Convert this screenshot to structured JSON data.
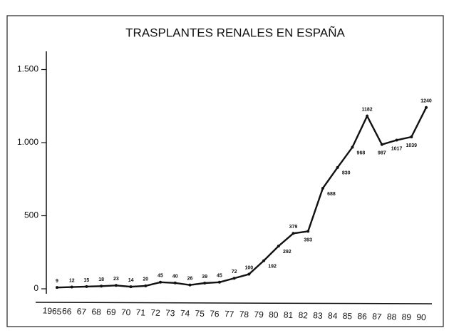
{
  "chart_data": {
    "type": "line",
    "title": "TRASPLANTES RENALES EN ESPAÑA",
    "categories": [
      "1965",
      "66",
      "67",
      "68",
      "69",
      "70",
      "71",
      "72",
      "73",
      "74",
      "75",
      "76",
      "77",
      "78",
      "79",
      "80",
      "81",
      "82",
      "83",
      "84",
      "85",
      "86",
      "87",
      "88",
      "89",
      "90"
    ],
    "series": [
      {
        "name": null,
        "color": "#111111",
        "values": [
          9,
          12,
          15,
          18,
          23,
          14,
          20,
          45,
          40,
          26,
          39,
          45,
          72,
          100,
          192,
          292,
          379,
          393,
          688,
          830,
          968,
          1182,
          987,
          1017,
          1039,
          1240
        ]
      }
    ],
    "ylim": [
      0,
      1600
    ],
    "yticks": [
      0,
      500,
      {
        "value": 1000,
        "label": "1.000"
      },
      {
        "value": 1500,
        "label": "1.500"
      }
    ],
    "grid": false
  }
}
